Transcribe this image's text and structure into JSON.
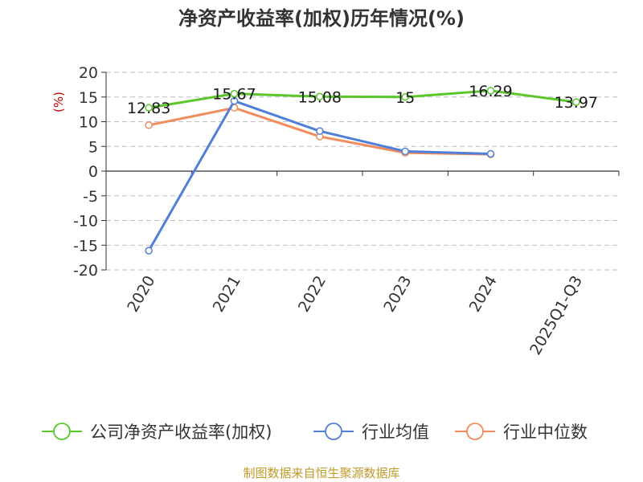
{
  "chart_data": {
    "type": "line",
    "title": "净资产收益率(加权)历年情况(%)",
    "ylabel": "(%)",
    "categories": [
      "2020",
      "2021",
      "2022",
      "2023",
      "2024",
      "2025Q1-Q3"
    ],
    "ylim": [
      -20,
      20
    ],
    "yticks": [
      20,
      15,
      10,
      5,
      0,
      -5,
      -10,
      -15,
      -20
    ],
    "grid": true,
    "legend_position": "bottom",
    "series": [
      {
        "name": "公司净资产收益率(加权)",
        "color": "#5bc72b",
        "values": [
          12.83,
          15.67,
          15.08,
          15,
          16.29,
          13.97
        ],
        "labels": [
          "12.83",
          "15.67",
          "15.08",
          "15",
          "16.29",
          "13.97"
        ]
      },
      {
        "name": "行业均值",
        "color": "#4f7fd9",
        "values": [
          -16.1,
          14.2,
          8.1,
          4.0,
          3.5,
          null
        ]
      },
      {
        "name": "行业中位数",
        "color": "#f28c5e",
        "values": [
          9.3,
          12.8,
          7.0,
          3.7,
          3.4,
          null
        ]
      }
    ],
    "source": "制图数据来自恒生聚源数据库"
  }
}
